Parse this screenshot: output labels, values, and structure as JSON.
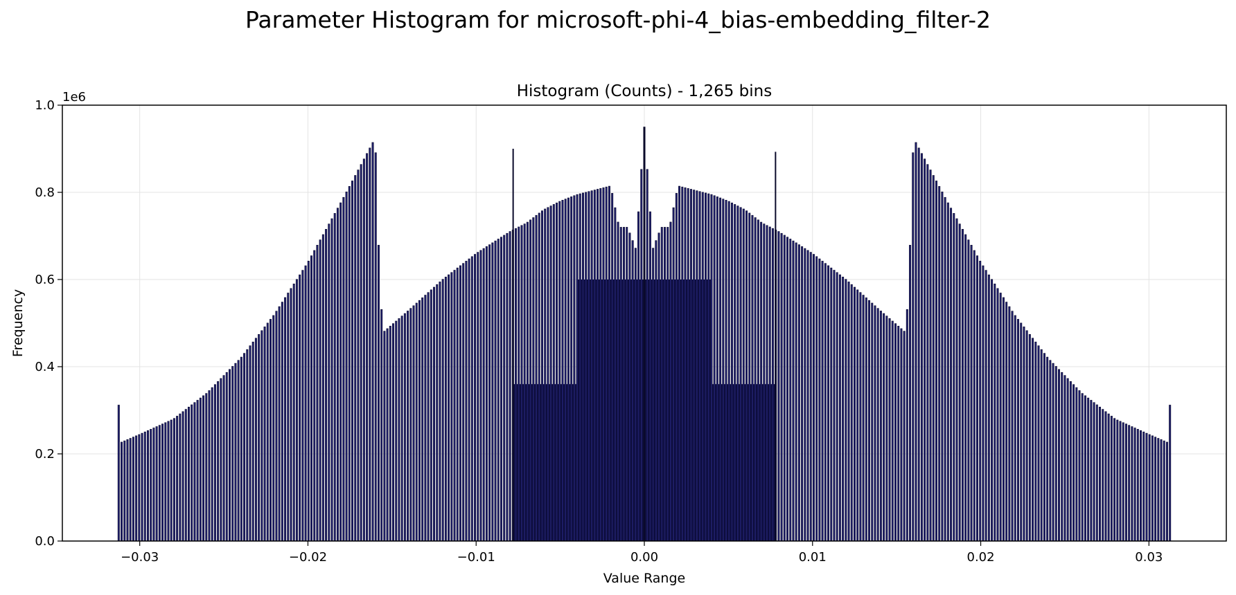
{
  "chart_data": {
    "type": "bar",
    "title": "Parameter Histogram for microsoft-phi-4_bias-embedding_filter-2",
    "subtitle": "Histogram (Counts) - 1,265 bins",
    "xlabel": "Value Range",
    "ylabel": "Frequency",
    "y_scale_label": "1e6",
    "xlim": [
      -0.0346,
      0.0346
    ],
    "ylim": [
      0,
      1000000
    ],
    "grid": true,
    "x_ticks": [
      -0.03,
      -0.02,
      -0.01,
      0.0,
      0.01,
      0.02,
      0.03
    ],
    "x_tick_labels": [
      "−0.03",
      "−0.02",
      "−0.01",
      "0.00",
      "0.01",
      "0.02",
      "0.03"
    ],
    "y_ticks": [
      0,
      200000,
      400000,
      600000,
      800000,
      1000000
    ],
    "y_tick_labels": [
      "0.0",
      "0.2",
      "0.4",
      "0.6",
      "0.8",
      "1.0"
    ],
    "bar_fill": "#1f1f6b",
    "bar_edge": "#0a0a2a",
    "dense_fill": "#10104a",
    "series": [
      {
        "values_profile": [
          [
            -0.03125,
            312000
          ],
          [
            -0.0312,
            225000
          ],
          [
            -0.03,
            245000
          ],
          [
            -0.028,
            280000
          ],
          [
            -0.026,
            340000
          ],
          [
            -0.024,
            420000
          ],
          [
            -0.022,
            520000
          ],
          [
            -0.02,
            640000
          ],
          [
            -0.018,
            780000
          ],
          [
            -0.016,
            925000
          ],
          [
            -0.0158,
            680000
          ],
          [
            -0.0156,
            510000
          ],
          [
            -0.0155,
            480000
          ],
          [
            -0.014,
            530000
          ],
          [
            -0.012,
            600000
          ],
          [
            -0.01,
            660000
          ],
          [
            -0.008,
            710000
          ],
          [
            -0.007,
            730000
          ],
          [
            -0.006,
            760000
          ],
          [
            -0.005,
            780000
          ],
          [
            -0.004,
            795000
          ],
          [
            -0.002,
            815000
          ],
          [
            -0.0015,
            720000
          ],
          [
            -0.001,
            720000
          ],
          [
            -0.0005,
            670000
          ],
          [
            0.0,
            950000
          ],
          [
            0.0005,
            670000
          ],
          [
            0.001,
            720000
          ],
          [
            0.0015,
            720000
          ],
          [
            0.002,
            815000
          ],
          [
            0.004,
            795000
          ],
          [
            0.005,
            780000
          ],
          [
            0.006,
            760000
          ],
          [
            0.007,
            730000
          ],
          [
            0.008,
            710000
          ],
          [
            0.01,
            660000
          ],
          [
            0.012,
            600000
          ],
          [
            0.014,
            530000
          ],
          [
            0.0155,
            480000
          ],
          [
            0.0156,
            510000
          ],
          [
            0.0158,
            680000
          ],
          [
            0.016,
            925000
          ],
          [
            0.018,
            780000
          ],
          [
            0.02,
            640000
          ],
          [
            0.022,
            520000
          ],
          [
            0.024,
            420000
          ],
          [
            0.026,
            340000
          ],
          [
            0.028,
            280000
          ],
          [
            0.03,
            245000
          ],
          [
            0.0312,
            225000
          ],
          [
            0.03125,
            312000
          ]
        ],
        "spikes": [
          [
            -0.0078,
            900000
          ],
          [
            0.0,
            950000
          ],
          [
            0.0078,
            893000
          ]
        ],
        "dense_core": {
          "x_range": [
            -0.0078,
            0.0078
          ],
          "inner_level": 360000,
          "core_range": [
            -0.004,
            0.004
          ],
          "core_level": 600000
        }
      }
    ]
  }
}
